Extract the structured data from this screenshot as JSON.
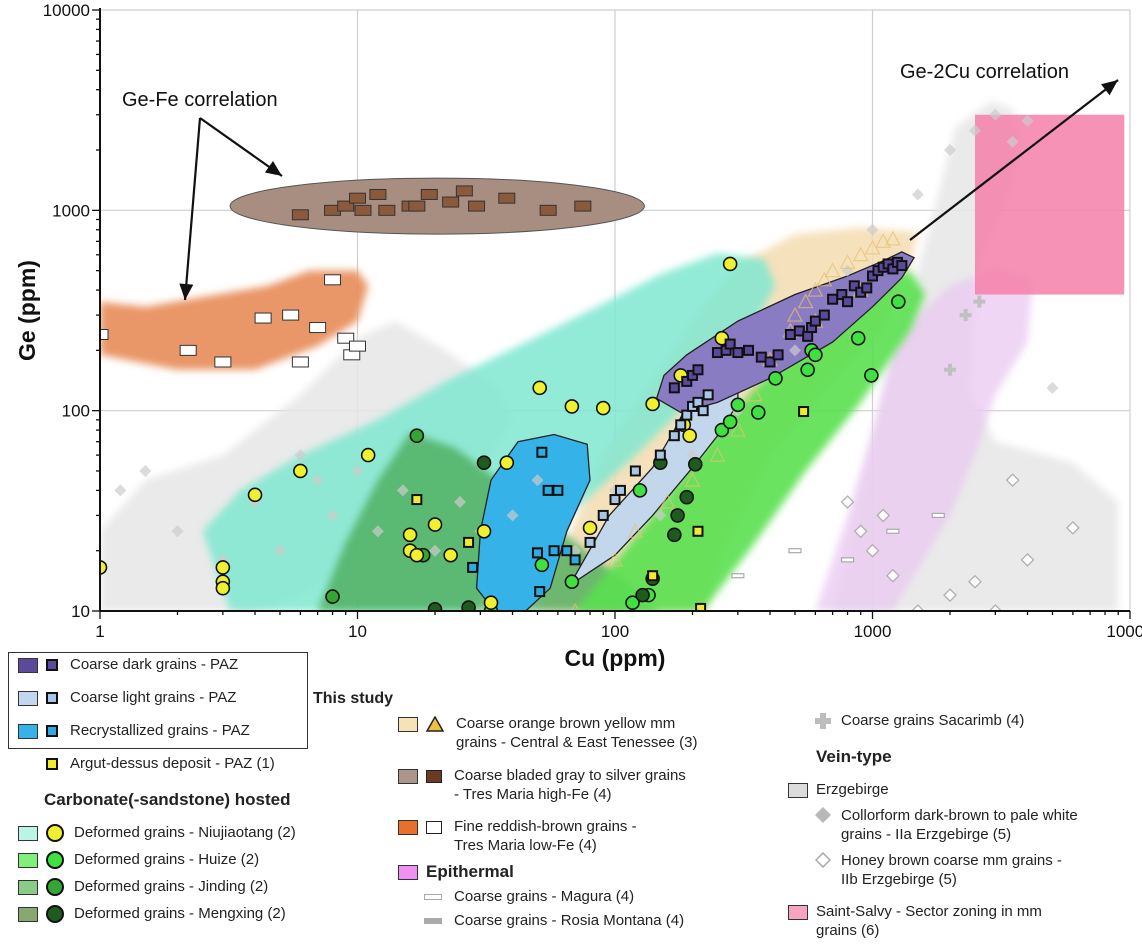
{
  "chart_data": {
    "type": "scatter",
    "xlabel": "Cu (ppm)",
    "ylabel": "Ge (ppm)",
    "xscale": "log",
    "yscale": "log",
    "xlim": [
      1,
      10000
    ],
    "ylim": [
      10,
      10000
    ],
    "x_ticks": [
      "1",
      "10",
      "100",
      "1000",
      "10000"
    ],
    "y_ticks": [
      "10",
      "100",
      "1000",
      "10000"
    ],
    "grid": true,
    "annotations": [
      "Ge-Fe correlation",
      "Ge-2Cu correlation"
    ],
    "series": [
      {
        "name": "Coarse dark grains - PAZ",
        "marker": "square",
        "fill": "#5b4a9c",
        "region": "#8a7cc2",
        "x": [
          170,
          190,
          200,
          210,
          250,
          270,
          280,
          300,
          330,
          370,
          400,
          430,
          480,
          520,
          560,
          580,
          600,
          650,
          700,
          760,
          800,
          850,
          900,
          950,
          1000,
          1050,
          1100,
          1150,
          1200,
          1250,
          1300
        ],
        "y": [
          130,
          140,
          150,
          160,
          195,
          200,
          215,
          195,
          200,
          185,
          175,
          190,
          240,
          250,
          235,
          260,
          280,
          300,
          360,
          380,
          350,
          420,
          390,
          410,
          470,
          500,
          520,
          540,
          510,
          550,
          530
        ]
      },
      {
        "name": "Coarse light grains - PAZ",
        "marker": "square",
        "fill": "#a9c6e6",
        "region": "#c2d6ec",
        "x": [
          80,
          90,
          100,
          105,
          120,
          150,
          170,
          180,
          190,
          200,
          210,
          220,
          230
        ],
        "y": [
          22,
          30,
          36,
          40,
          50,
          60,
          75,
          85,
          95,
          105,
          110,
          100,
          120
        ]
      },
      {
        "name": "Recrystallized grains - PAZ",
        "marker": "square",
        "fill": "#2fa9e0",
        "region": "#35b3e8",
        "x": [
          28,
          50,
          51,
          52,
          55,
          58,
          60,
          65,
          70
        ],
        "y": [
          16.5,
          19.5,
          12.5,
          62,
          40,
          20,
          40,
          20,
          18
        ]
      },
      {
        "name": "Argut-dessus deposit - PAZ (1)",
        "marker": "square",
        "fill": "#f0ea30",
        "x": [
          17,
          27,
          50,
          140,
          210,
          215,
          540
        ],
        "y": [
          36,
          22,
          19.5,
          15,
          25,
          10.3,
          99
        ]
      },
      {
        "name": "Deformed grains - Niujiaotang (2)",
        "marker": "circle",
        "fill": "#f0f030",
        "region": "#7fe8d0",
        "x": [
          1,
          3,
          3,
          3,
          4,
          6,
          11,
          16,
          16,
          17,
          20,
          23,
          31,
          33,
          38,
          51,
          68,
          80,
          90,
          140,
          180,
          185,
          195,
          260,
          280
        ],
        "y": [
          16.5,
          16.5,
          14,
          13,
          38,
          50,
          60,
          24,
          20,
          19,
          27,
          19,
          25,
          11,
          55,
          130,
          105,
          26,
          103,
          108,
          150,
          85,
          75,
          230,
          540
        ]
      },
      {
        "name": "Deformed grains - Huize (2)",
        "marker": "circle",
        "fill": "#40e040",
        "region": "#5ae050",
        "x": [
          33,
          52,
          68,
          117,
          125,
          135,
          260,
          280,
          300,
          360,
          420,
          560,
          580,
          600,
          880,
          990,
          1260
        ],
        "y": [
          10,
          17,
          14,
          11,
          40,
          12,
          80,
          88,
          107,
          98,
          145,
          160,
          200,
          190,
          230,
          150,
          350
        ]
      },
      {
        "name": "Deformed grains - Jinding (2)",
        "marker": "circle",
        "fill": "#35a635",
        "region": "#4cad5a",
        "x": [
          8,
          17,
          18
        ],
        "y": [
          11.8,
          75,
          19
        ]
      },
      {
        "name": "Deformed grains - Mengxing (2)",
        "marker": "circle",
        "fill": "#1f5a1f",
        "region": "#6a9a55",
        "x": [
          20,
          27,
          31,
          128,
          140,
          150,
          170,
          175,
          190,
          205
        ],
        "y": [
          10.2,
          10.4,
          55,
          12,
          14.5,
          55,
          24,
          30,
          37,
          54
        ]
      },
      {
        "name": "Coarse orange brown yellow mm grains - Central & East Tenessee (3)",
        "marker": "triangle",
        "fill": "#f2c040",
        "region": "#f3dcb0",
        "x": [
          70,
          100,
          120,
          160,
          200,
          250,
          300,
          350,
          400,
          480,
          500,
          550,
          600,
          650,
          700,
          800,
          900,
          1000,
          1100,
          1200,
          900,
          600
        ],
        "y": [
          10,
          18,
          25,
          35,
          45,
          60,
          80,
          120,
          180,
          250,
          300,
          350,
          400,
          450,
          500,
          550,
          600,
          650,
          700,
          720,
          400,
          280
        ]
      },
      {
        "name": "Coarse bladed gray to silver grains - Tres Maria high-Fe (4)",
        "marker": "rect",
        "fill": "#8b5a3c",
        "region": "#a88e80",
        "x": [
          6,
          8,
          9,
          10,
          10.5,
          12,
          13,
          16,
          17,
          19,
          23,
          26,
          29,
          38,
          55,
          75
        ],
        "y": [
          950,
          1000,
          1050,
          1150,
          1000,
          1200,
          1000,
          1050,
          1050,
          1200,
          1100,
          1250,
          1050,
          1150,
          1000,
          1050
        ]
      },
      {
        "name": "Fine reddish-brown grains - Tres Maria low-Fe (4)",
        "marker": "rect",
        "fill": "#ffffff",
        "region": "#e89060",
        "x": [
          1,
          2.2,
          3,
          4.3,
          5.5,
          6,
          7,
          8,
          9,
          9.5,
          10
        ],
        "y": [
          240,
          200,
          175,
          290,
          300,
          175,
          260,
          450,
          230,
          190,
          210
        ]
      },
      {
        "name": "Coarse grains - Magura (4)",
        "marker": "dash",
        "fill": "#bbbbbb",
        "region": "#e8c8f0",
        "x": [
          900,
          1200,
          1500,
          2000,
          2500,
          3000
        ],
        "y": [
          90,
          160,
          95,
          60,
          250,
          85
        ]
      },
      {
        "name": "Coarse grains - Rosia Montana (4)",
        "marker": "dash",
        "fill": "#aaaaaa",
        "x": [
          300,
          500,
          800,
          1200,
          1800
        ],
        "y": [
          15,
          20,
          18,
          25,
          30
        ]
      },
      {
        "name": "Coarse grains Sacarimb (4)",
        "marker": "cross",
        "fill": "#c0c0c0",
        "x": [
          2000,
          2300,
          2600
        ],
        "y": [
          160,
          300,
          350
        ]
      },
      {
        "name": "Collorform dark-brown to pale white grains - IIa Erzgebirge (5)",
        "marker": "diamond",
        "fill": "#cccccc",
        "region": "#e6e6e6",
        "x": [
          1.2,
          1.5,
          2,
          3,
          4,
          5,
          6,
          7,
          8,
          10,
          12,
          15,
          20,
          25,
          30,
          40,
          50,
          70,
          100,
          150,
          200,
          300,
          500,
          800,
          1000,
          1500,
          2000,
          2500,
          3000,
          3500,
          4000,
          5000
        ],
        "y": [
          40,
          50,
          25,
          18,
          35,
          20,
          60,
          45,
          30,
          50,
          25,
          40,
          20,
          35,
          25,
          30,
          45,
          20,
          40,
          30,
          60,
          100,
          200,
          500,
          800,
          1200,
          2000,
          2500,
          3000,
          2200,
          2800,
          130
        ]
      },
      {
        "name": "Honey brown coarse mm grains - IIb Erzgebirge (5)",
        "marker": "diamond-open",
        "fill": "#ffffff",
        "x": [
          800,
          900,
          1000,
          1100,
          1200,
          1500,
          2000,
          2500,
          3000,
          3500,
          4000,
          6000
        ],
        "y": [
          35,
          25,
          20,
          30,
          15,
          10,
          12,
          14,
          10,
          45,
          18,
          26
        ]
      },
      {
        "name": "Saint-Salvy - Sector zoning in mm grains (6)",
        "marker": "box",
        "fill": "#f57fa8",
        "region": "#f57fa8",
        "x_range": [
          2500,
          9500
        ],
        "y_range": [
          380,
          3000
        ]
      }
    ]
  },
  "legend": {
    "this_study_label": "This study",
    "paz": [
      {
        "label": "Coarse dark grains - PAZ",
        "fill": "#5b4a9c",
        "marker_fill": "#5b4a9c"
      },
      {
        "label": "Coarse light grains - PAZ",
        "fill": "#a9c6e6",
        "marker_fill": "#a9c6e6"
      },
      {
        "label": "Recrystallized grains - PAZ",
        "fill": "#35b3e8",
        "marker_fill": "#2fa9e0"
      }
    ],
    "argut_label": "Argut-dessus deposit - PAZ (1)",
    "carbonate_head": "Carbonate(-sandstone) hosted",
    "carbonate": [
      {
        "label": "Deformed grains - Niujiaotang (2)",
        "fill": "#b8f5e6",
        "dot": "#f0f030"
      },
      {
        "label": "Deformed grains - Huize (2)",
        "fill": "#7ff07a",
        "dot": "#40e040"
      },
      {
        "label": "Deformed grains - Jinding (2)",
        "fill": "#88cc88",
        "dot": "#35a635"
      },
      {
        "label": "Deformed grains - Mengxing (2)",
        "fill": "#88a870",
        "dot": "#1f5a1f"
      }
    ],
    "tenessee_label_1": "Coarse orange brown yellow mm",
    "tenessee_label_2": "grains - Central & East Tenessee (3)",
    "tres_high_label_1": "Coarse bladed gray to silver grains",
    "tres_high_label_2": "- Tres Maria high-Fe (4)",
    "tres_low_label_1": "Fine reddish-brown grains -",
    "tres_low_label_2": "Tres Maria low-Fe (4)",
    "epithermal_head": "Epithermal",
    "magura_label": "Coarse grains - Magura (4)",
    "rosia_label": "Coarse grains - Rosia Montana (4)",
    "sacarimb_label": "Coarse grains Sacarimb (4)",
    "vein_head": "Vein-type",
    "erzgebirge_label": "Erzgebirge",
    "iia_label_1": "Collorform dark-brown to pale white",
    "iia_label_2": "grains - IIa Erzgebirge (5)",
    "iib_label_1": "Honey brown coarse mm grains -",
    "iib_label_2": "IIb Erzgebirge (5)",
    "salvy_label_1": "Saint-Salvy - Sector zoning in mm",
    "salvy_label_2": "grains (6)"
  }
}
